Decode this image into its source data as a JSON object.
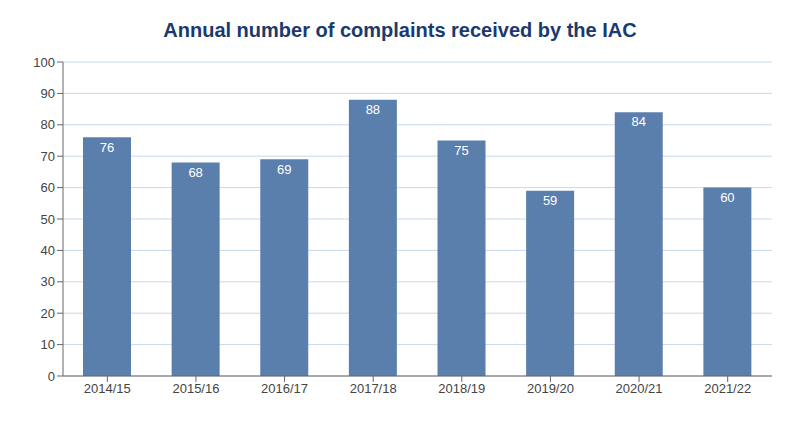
{
  "chart_data": {
    "type": "bar",
    "title": "Annual number of complaints received by the IAC",
    "categories": [
      "2014/15",
      "2015/16",
      "2016/17",
      "2017/18",
      "2018/19",
      "2019/20",
      "2020/21",
      "2021/22"
    ],
    "values": [
      76,
      68,
      69,
      88,
      75,
      59,
      84,
      60
    ],
    "color": "#5b7fad",
    "ylim": [
      0,
      100
    ],
    "yticks": [
      0,
      10,
      20,
      30,
      40,
      50,
      60,
      70,
      80,
      90,
      100
    ],
    "grid": true,
    "data_labels": true
  }
}
